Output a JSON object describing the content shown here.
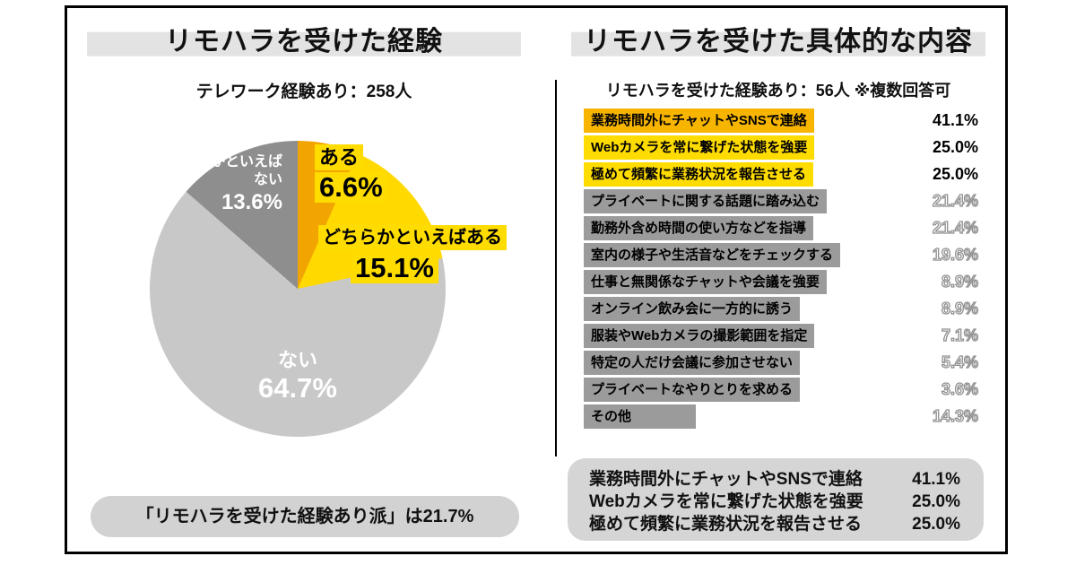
{
  "left_panel": {
    "title": "リモハラを受けた経験",
    "subtitle": "テレワーク経験あり：258人",
    "note": "「リモハラを受けた経験あり派」は21.7%"
  },
  "right_panel": {
    "title": "リモハラを受けた具体的な内容",
    "subtitle": "リモハラを受けた経験あり：56人 ※複数回答可",
    "summary": [
      {
        "label": "業務時間外にチャットやSNSで連絡",
        "value": "41.1%"
      },
      {
        "label": "Webカメラを常に繋げた状態を強要",
        "value": "25.0%"
      },
      {
        "label": "極めて頻繁に業務状況を報告させる",
        "value": "25.0%"
      }
    ]
  },
  "chart_data": [
    {
      "type": "pie",
      "title": "リモハラを受けた経験",
      "population": "テレワーク経験あり：258人",
      "start_angle_deg": 0,
      "direction": "clockwise",
      "segments": [
        {
          "label": "ある",
          "value": 6.6,
          "display": "6.6%",
          "color": "#F2A400"
        },
        {
          "label": "どちらかといえばある",
          "value": 15.1,
          "display": "15.1%",
          "color": "#FFD900"
        },
        {
          "label": "ない",
          "value": 64.7,
          "display": "64.7%",
          "color": "#C8C8C8"
        },
        {
          "label": "どちらかといえばない",
          "value": 13.6,
          "display": "13.6%",
          "color": "#8E8E8E"
        }
      ],
      "annotation": "「リモハラを受けた経験あり派」は21.7%"
    },
    {
      "type": "bar",
      "orientation": "horizontal",
      "title": "リモハラを受けた具体的な内容",
      "population": "リモハラを受けた経験あり：56人 ※複数回答可",
      "max_value": 41.1,
      "items": [
        {
          "label": "業務時間外にチャットやSNSで連絡",
          "value": 41.1,
          "display": "41.1%",
          "color": "#F7B500",
          "pct_style": "solid"
        },
        {
          "label": "Webカメラを常に繋げた状態を強要",
          "value": 25.0,
          "display": "25.0%",
          "color": "#FFDC00",
          "pct_style": "solid"
        },
        {
          "label": "極めて頻繁に業務状況を報告させる",
          "value": 25.0,
          "display": "25.0%",
          "color": "#FFDC00",
          "pct_style": "solid"
        },
        {
          "label": "プライベートに関する話題に踏み込む",
          "value": 21.4,
          "display": "21.4%",
          "color": "#9B9B9B",
          "pct_style": "outline"
        },
        {
          "label": "勤務外含め時間の使い方などを指導",
          "value": 21.4,
          "display": "21.4%",
          "color": "#9B9B9B",
          "pct_style": "outline"
        },
        {
          "label": "室内の様子や生活音などをチェックする",
          "value": 19.6,
          "display": "19.6%",
          "color": "#9B9B9B",
          "pct_style": "outline"
        },
        {
          "label": "仕事と無関係なチャットや会議を強要",
          "value": 8.9,
          "display": "8.9%",
          "color": "#9B9B9B",
          "pct_style": "outline"
        },
        {
          "label": "オンライン飲み会に一方的に誘う",
          "value": 8.9,
          "display": "8.9%",
          "color": "#9B9B9B",
          "pct_style": "outline"
        },
        {
          "label": "服装やWebカメラの撮影範囲を指定",
          "value": 7.1,
          "display": "7.1%",
          "color": "#9B9B9B",
          "pct_style": "outline"
        },
        {
          "label": "特定の人だけ会議に参加させない",
          "value": 5.4,
          "display": "5.4%",
          "color": "#9B9B9B",
          "pct_style": "outline"
        },
        {
          "label": "プライベートなやりとりを求める",
          "value": 3.6,
          "display": "3.6%",
          "color": "#9B9B9B",
          "pct_style": "outline"
        },
        {
          "label": "その他",
          "value": 14.3,
          "display": "14.3%",
          "color": "#9B9B9B",
          "pct_style": "outline"
        }
      ]
    }
  ]
}
